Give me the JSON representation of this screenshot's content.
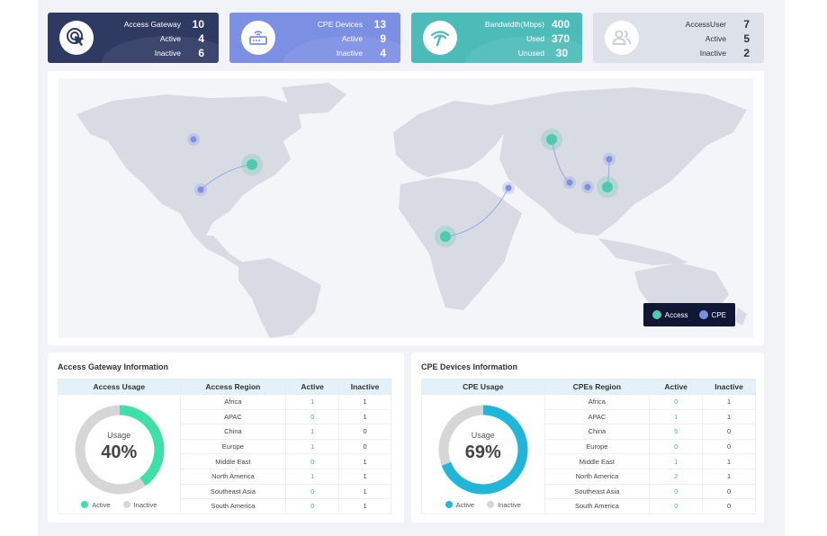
{
  "stats": {
    "gateway": {
      "icon": "cursor-target-icon",
      "rows": [
        {
          "label": "Access Gateway",
          "value": "10"
        },
        {
          "label": "Active",
          "value": "4"
        },
        {
          "label": "Inactive",
          "value": "6"
        }
      ]
    },
    "cpe": {
      "icon": "router-icon",
      "rows": [
        {
          "label": "CPE Devices",
          "value": "13"
        },
        {
          "label": "Active",
          "value": "9"
        },
        {
          "label": "Inactive",
          "value": "4"
        }
      ]
    },
    "bandwidth": {
      "icon": "wifi-signal-icon",
      "rows": [
        {
          "label": "Bandwidth(Mbps)",
          "value": "400"
        },
        {
          "label": "Used",
          "value": "370"
        },
        {
          "label": "Unused",
          "value": "30"
        }
      ]
    },
    "users": {
      "icon": "users-icon",
      "rows": [
        {
          "label": "AccessUser",
          "value": "7"
        },
        {
          "label": "Active",
          "value": "5"
        },
        {
          "label": "Inactive",
          "value": "2"
        }
      ]
    }
  },
  "map": {
    "legend": [
      {
        "label": "Access",
        "color": "#4fc9b0"
      },
      {
        "label": "CPE",
        "color": "#7b8fe3"
      }
    ]
  },
  "gateway_info": {
    "title": "Access Gateway Information",
    "headers": [
      "Access Usage",
      "Access Region",
      "Active",
      "Inactive"
    ],
    "usage_title": "Usage",
    "usage_pct": "40%",
    "usage_value": 0.4,
    "active_color": "#3de0a8",
    "legend": [
      "Active",
      "Inactive"
    ],
    "rows": [
      {
        "region": "Africa",
        "active": "1",
        "inactive": "1"
      },
      {
        "region": "APAC",
        "active": "0",
        "inactive": "1"
      },
      {
        "region": "China",
        "active": "1",
        "inactive": "0"
      },
      {
        "region": "Europe",
        "active": "1",
        "inactive": "0"
      },
      {
        "region": "Middle East",
        "active": "0",
        "inactive": "1"
      },
      {
        "region": "North America",
        "active": "1",
        "inactive": "1"
      },
      {
        "region": "Southeast Asia",
        "active": "0",
        "inactive": "1"
      },
      {
        "region": "South America",
        "active": "0",
        "inactive": "1"
      }
    ]
  },
  "cpe_info": {
    "title": "CPE Devices Information",
    "headers": [
      "CPE Usage",
      "CPEs Region",
      "Active",
      "Inactive"
    ],
    "usage_title": "Usage",
    "usage_pct": "69%",
    "usage_value": 0.69,
    "active_color": "#1fb6da",
    "legend": [
      "Active",
      "Inactive"
    ],
    "rows": [
      {
        "region": "Africa",
        "active": "0",
        "inactive": "1"
      },
      {
        "region": "APAC",
        "active": "1",
        "inactive": "1"
      },
      {
        "region": "China",
        "active": "5",
        "inactive": "0"
      },
      {
        "region": "Europe",
        "active": "0",
        "inactive": "0"
      },
      {
        "region": "Middle East",
        "active": "1",
        "inactive": "1"
      },
      {
        "region": "North America",
        "active": "2",
        "inactive": "1"
      },
      {
        "region": "Southeast Asia",
        "active": "0",
        "inactive": "0"
      },
      {
        "region": "South America",
        "active": "0",
        "inactive": "0"
      }
    ]
  }
}
